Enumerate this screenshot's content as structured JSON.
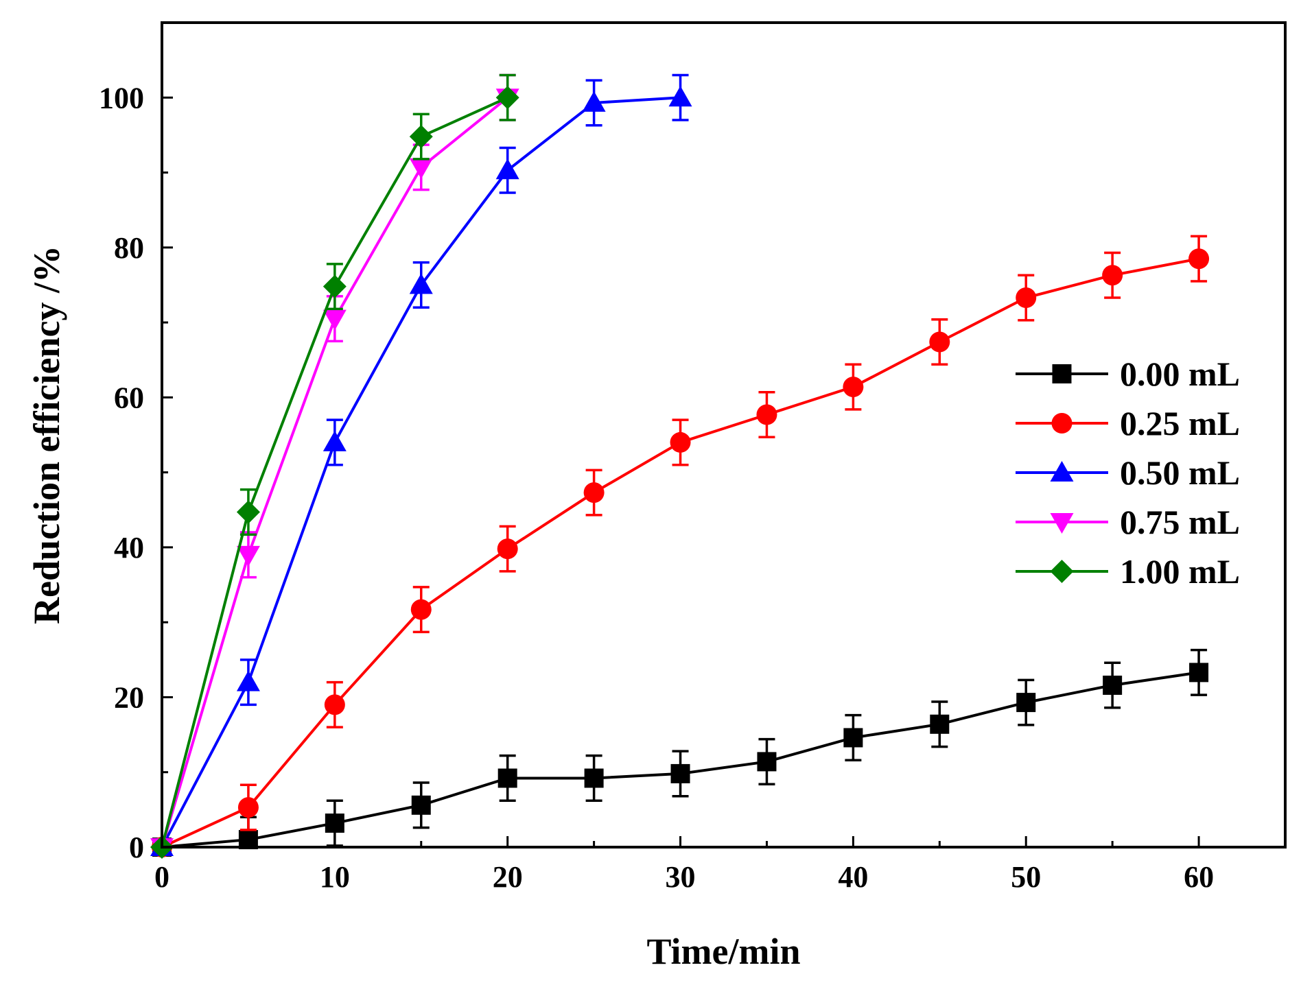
{
  "chart_data": {
    "type": "line",
    "title": "",
    "xlabel": "Time/min",
    "ylabel": "Reduction efficiency /%",
    "xlim": [
      0,
      65
    ],
    "ylim": [
      0,
      110
    ],
    "xticks": [
      0,
      10,
      20,
      30,
      40,
      50,
      60
    ],
    "xtick_labels": [
      "0",
      "10",
      "20",
      "30",
      "40",
      "50",
      "60"
    ],
    "yticks": [
      0,
      20,
      40,
      60,
      80,
      100
    ],
    "ytick_labels": [
      "0",
      "20",
      "40",
      "60",
      "80",
      "100"
    ],
    "grid": false,
    "legend_position": "right",
    "error_bar": 3,
    "series": [
      {
        "name": "0.00 mL",
        "color": "#000000",
        "marker": "square",
        "x": [
          0,
          5,
          10,
          15,
          20,
          25,
          30,
          35,
          40,
          45,
          50,
          55,
          60
        ],
        "values": [
          0,
          1,
          3.2,
          5.6,
          9.2,
          9.2,
          9.8,
          11.4,
          14.6,
          16.4,
          19.3,
          21.6,
          23.3
        ]
      },
      {
        "name": "0.25 mL",
        "color": "#ff0000",
        "marker": "circle",
        "x": [
          0,
          5,
          10,
          15,
          20,
          25,
          30,
          35,
          40,
          45,
          50,
          55,
          60
        ],
        "values": [
          0,
          5.3,
          19,
          31.7,
          39.8,
          47.3,
          54,
          57.7,
          61.4,
          67.4,
          73.3,
          76.3,
          78.5
        ]
      },
      {
        "name": "0.50 mL",
        "color": "#0000ff",
        "marker": "triangle-up",
        "x": [
          0,
          5,
          10,
          15,
          20,
          25,
          30
        ],
        "values": [
          0,
          22,
          54,
          75,
          90.3,
          99.3,
          100
        ]
      },
      {
        "name": "0.75 mL",
        "color": "#ff00ff",
        "marker": "triangle-down",
        "x": [
          0,
          5,
          10,
          15,
          20
        ],
        "values": [
          0,
          39,
          70.5,
          90.7,
          100
        ]
      },
      {
        "name": "1.00 mL",
        "color": "#008000",
        "marker": "diamond",
        "x": [
          0,
          5,
          10,
          15,
          20
        ],
        "values": [
          0,
          44.7,
          74.8,
          94.8,
          100
        ]
      }
    ]
  }
}
